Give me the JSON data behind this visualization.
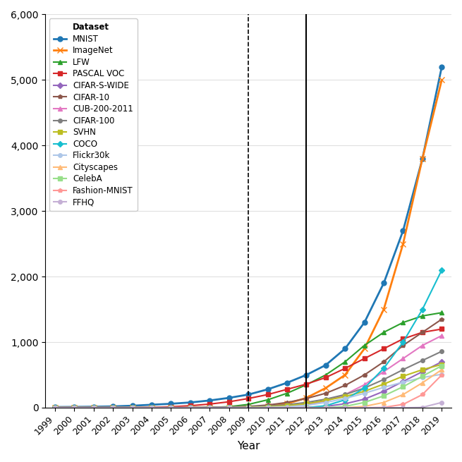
{
  "xlabel": "Year",
  "ylabel": "",
  "years": [
    1999,
    2000,
    2001,
    2002,
    2003,
    2004,
    2005,
    2006,
    2007,
    2008,
    2009,
    2010,
    2011,
    2012,
    2013,
    2014,
    2015,
    2016,
    2017,
    2018,
    2019
  ],
  "dashed_line_year": 2009,
  "solid_line_year": 2012,
  "datasets": [
    {
      "name": "MNIST",
      "color": "#1f77b4",
      "marker": "o",
      "markersize": 5,
      "linewidth": 2.0,
      "values": [
        10,
        12,
        15,
        20,
        30,
        45,
        60,
        80,
        110,
        150,
        200,
        280,
        380,
        500,
        650,
        900,
        1300,
        1900,
        2700,
        3800,
        5200
      ]
    },
    {
      "name": "ImageNet",
      "color": "#ff7f0e",
      "marker": "x",
      "markersize": 6,
      "linewidth": 2.0,
      "values": [
        0,
        0,
        0,
        0,
        0,
        0,
        0,
        0,
        0,
        0,
        5,
        20,
        60,
        150,
        300,
        500,
        900,
        1500,
        2500,
        3800,
        5000
      ]
    },
    {
      "name": "LFW",
      "color": "#2ca02c",
      "marker": "^",
      "markersize": 5,
      "linewidth": 1.5,
      "values": [
        0,
        0,
        0,
        0,
        0,
        0,
        0,
        0,
        5,
        15,
        50,
        120,
        220,
        350,
        500,
        700,
        950,
        1150,
        1300,
        1400,
        1450
      ]
    },
    {
      "name": "PASCAL VOC",
      "color": "#d62728",
      "marker": "s",
      "markersize": 4,
      "linewidth": 1.5,
      "values": [
        0,
        0,
        0,
        0,
        0,
        5,
        15,
        30,
        55,
        90,
        140,
        200,
        280,
        360,
        460,
        600,
        750,
        900,
        1050,
        1150,
        1200
      ]
    },
    {
      "name": "CIFAR-S-WIDE",
      "color": "#9467bd",
      "marker": "D",
      "markersize": 4,
      "linewidth": 1.5,
      "values": [
        0,
        0,
        0,
        0,
        0,
        0,
        0,
        0,
        0,
        0,
        0,
        0,
        0,
        5,
        20,
        60,
        130,
        250,
        400,
        550,
        700
      ]
    },
    {
      "name": "CIFAR-10",
      "color": "#8c564b",
      "marker": "p",
      "markersize": 4,
      "linewidth": 1.5,
      "values": [
        0,
        0,
        0,
        0,
        0,
        0,
        0,
        0,
        5,
        10,
        20,
        40,
        80,
        140,
        220,
        340,
        500,
        700,
        950,
        1150,
        1350
      ]
    },
    {
      "name": "CUB-200-2011",
      "color": "#e377c2",
      "marker": "^",
      "markersize": 5,
      "linewidth": 1.5,
      "values": [
        0,
        0,
        0,
        0,
        0,
        0,
        0,
        0,
        0,
        0,
        0,
        5,
        20,
        50,
        100,
        200,
        350,
        550,
        750,
        950,
        1100
      ]
    },
    {
      "name": "CIFAR-100",
      "color": "#7f7f7f",
      "marker": "o",
      "markersize": 4,
      "linewidth": 1.5,
      "values": [
        0,
        0,
        0,
        0,
        0,
        0,
        0,
        0,
        5,
        10,
        15,
        25,
        45,
        80,
        130,
        200,
        300,
        430,
        580,
        720,
        860
      ]
    },
    {
      "name": "SVHN",
      "color": "#bcbd22",
      "marker": "s",
      "markersize": 4,
      "linewidth": 1.5,
      "values": [
        0,
        0,
        0,
        0,
        0,
        0,
        0,
        0,
        0,
        0,
        5,
        15,
        30,
        60,
        110,
        170,
        250,
        360,
        480,
        580,
        660
      ]
    },
    {
      "name": "COCO",
      "color": "#17becf",
      "marker": "D",
      "markersize": 4,
      "linewidth": 1.5,
      "values": [
        0,
        0,
        0,
        0,
        0,
        0,
        0,
        0,
        0,
        0,
        0,
        0,
        0,
        0,
        30,
        120,
        300,
        600,
        1000,
        1500,
        2100
      ]
    },
    {
      "name": "Flickr30k",
      "color": "#aec7e8",
      "marker": "o",
      "markersize": 4,
      "linewidth": 1.5,
      "values": [
        0,
        0,
        0,
        0,
        0,
        0,
        0,
        0,
        0,
        0,
        0,
        5,
        15,
        35,
        80,
        140,
        220,
        310,
        390,
        460,
        510
      ]
    },
    {
      "name": "Cityscapes",
      "color": "#ffbb78",
      "marker": "^",
      "markersize": 4,
      "linewidth": 1.5,
      "values": [
        0,
        0,
        0,
        0,
        0,
        0,
        0,
        0,
        0,
        0,
        0,
        0,
        0,
        0,
        0,
        0,
        20,
        80,
        200,
        380,
        580
      ]
    },
    {
      "name": "CelebA",
      "color": "#98df8a",
      "marker": "s",
      "markersize": 4,
      "linewidth": 1.5,
      "values": [
        0,
        0,
        0,
        0,
        0,
        0,
        0,
        0,
        0,
        0,
        0,
        0,
        0,
        0,
        0,
        20,
        80,
        180,
        320,
        480,
        640
      ]
    },
    {
      "name": "Fashion-MNIST",
      "color": "#ff9896",
      "marker": "p",
      "markersize": 4,
      "linewidth": 1.5,
      "values": [
        0,
        0,
        0,
        0,
        0,
        0,
        0,
        0,
        0,
        0,
        0,
        0,
        0,
        0,
        0,
        0,
        0,
        5,
        50,
        200,
        500
      ]
    },
    {
      "name": "FFHQ",
      "color": "#c5b0d5",
      "marker": "o",
      "markersize": 4,
      "linewidth": 1.5,
      "values": [
        0,
        0,
        0,
        0,
        0,
        0,
        0,
        0,
        0,
        0,
        0,
        0,
        0,
        0,
        0,
        0,
        0,
        0,
        0,
        5,
        80
      ]
    }
  ],
  "ylim": [
    0,
    6000
  ],
  "background_color": "#ffffff",
  "grid_color": "#e0e0e0",
  "legend_header": "Dataset"
}
